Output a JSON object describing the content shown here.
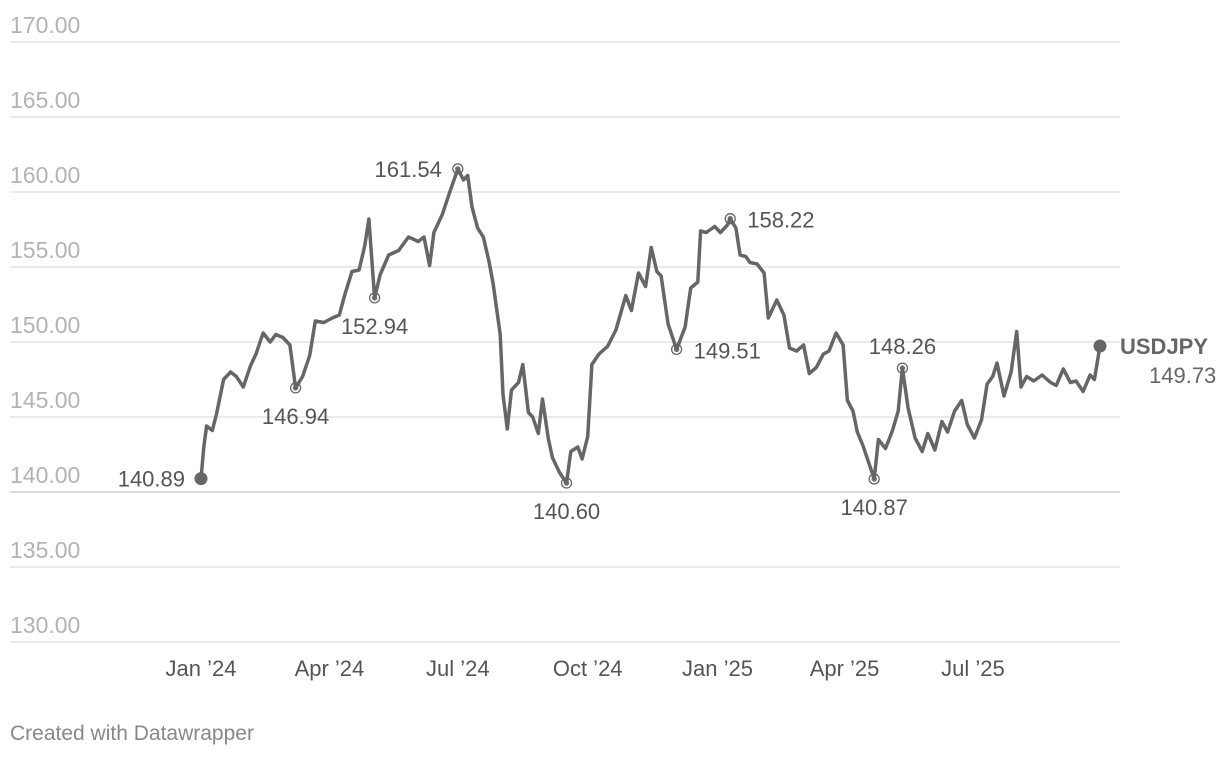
{
  "chart_data": {
    "type": "line",
    "ylim": [
      130,
      170
    ],
    "grid": true,
    "y_ticks": [
      "170.00",
      "165.00",
      "160.00",
      "155.00",
      "150.00",
      "145.00",
      "140.00",
      "135.00",
      "130.00"
    ],
    "y_tick_values": [
      170,
      165,
      160,
      155,
      150,
      145,
      140,
      135,
      130
    ],
    "x_ticks": [
      {
        "label": "Jan ’24",
        "date": "2024-01-01"
      },
      {
        "label": "Apr ’24",
        "date": "2024-04-01"
      },
      {
        "label": "Jul ’24",
        "date": "2024-07-01"
      },
      {
        "label": "Oct ’24",
        "date": "2024-10-01"
      },
      {
        "label": "Jan ’25",
        "date": "2025-01-01"
      },
      {
        "label": "Apr ’25",
        "date": "2025-04-01"
      },
      {
        "label": "Jul ’25",
        "date": "2025-07-01"
      }
    ],
    "series": [
      {
        "name": "USDJPY",
        "color": "#666666",
        "points": [
          [
            "2024-01-01",
            140.89
          ],
          [
            "2024-01-03",
            143.0
          ],
          [
            "2024-01-05",
            144.4
          ],
          [
            "2024-01-09",
            144.1
          ],
          [
            "2024-01-12",
            145.2
          ],
          [
            "2024-01-17",
            147.5
          ],
          [
            "2024-01-22",
            148.0
          ],
          [
            "2024-01-26",
            147.7
          ],
          [
            "2024-01-31",
            147.0
          ],
          [
            "2024-02-05",
            148.4
          ],
          [
            "2024-02-09",
            149.2
          ],
          [
            "2024-02-14",
            150.6
          ],
          [
            "2024-02-19",
            150.0
          ],
          [
            "2024-02-23",
            150.5
          ],
          [
            "2024-02-28",
            150.3
          ],
          [
            "2024-03-04",
            149.8
          ],
          [
            "2024-03-08",
            146.94
          ],
          [
            "2024-03-13",
            147.7
          ],
          [
            "2024-03-18",
            149.1
          ],
          [
            "2024-03-22",
            151.4
          ],
          [
            "2024-03-28",
            151.3
          ],
          [
            "2024-04-03",
            151.6
          ],
          [
            "2024-04-08",
            151.8
          ],
          [
            "2024-04-12",
            153.2
          ],
          [
            "2024-04-17",
            154.7
          ],
          [
            "2024-04-22",
            154.8
          ],
          [
            "2024-04-26",
            156.4
          ],
          [
            "2024-04-29",
            158.2
          ],
          [
            "2024-05-01",
            155.5
          ],
          [
            "2024-05-03",
            152.94
          ],
          [
            "2024-05-07",
            154.5
          ],
          [
            "2024-05-13",
            155.8
          ],
          [
            "2024-05-20",
            156.1
          ],
          [
            "2024-05-27",
            157.0
          ],
          [
            "2024-06-03",
            156.7
          ],
          [
            "2024-06-07",
            157.0
          ],
          [
            "2024-06-11",
            155.1
          ],
          [
            "2024-06-14",
            157.3
          ],
          [
            "2024-06-20",
            158.5
          ],
          [
            "2024-06-26",
            160.2
          ],
          [
            "2024-07-01",
            161.54
          ],
          [
            "2024-07-05",
            160.8
          ],
          [
            "2024-07-08",
            161.1
          ],
          [
            "2024-07-11",
            159.0
          ],
          [
            "2024-07-15",
            157.6
          ],
          [
            "2024-07-19",
            157.0
          ],
          [
            "2024-07-23",
            155.4
          ],
          [
            "2024-07-26",
            153.9
          ],
          [
            "2024-07-31",
            150.5
          ],
          [
            "2024-08-02",
            146.5
          ],
          [
            "2024-08-05",
            144.2
          ],
          [
            "2024-08-08",
            146.8
          ],
          [
            "2024-08-13",
            147.3
          ],
          [
            "2024-08-16",
            148.5
          ],
          [
            "2024-08-20",
            145.3
          ],
          [
            "2024-08-23",
            145.0
          ],
          [
            "2024-08-27",
            143.9
          ],
          [
            "2024-08-30",
            146.2
          ],
          [
            "2024-09-03",
            143.6
          ],
          [
            "2024-09-06",
            142.3
          ],
          [
            "2024-09-11",
            141.3
          ],
          [
            "2024-09-16",
            140.6
          ],
          [
            "2024-09-19",
            142.7
          ],
          [
            "2024-09-24",
            143.0
          ],
          [
            "2024-09-27",
            142.2
          ],
          [
            "2024-10-01",
            143.7
          ],
          [
            "2024-10-04",
            148.5
          ],
          [
            "2024-10-09",
            149.2
          ],
          [
            "2024-10-15",
            149.7
          ],
          [
            "2024-10-21",
            150.8
          ],
          [
            "2024-10-28",
            153.1
          ],
          [
            "2024-11-01",
            152.1
          ],
          [
            "2024-11-06",
            154.6
          ],
          [
            "2024-11-11",
            153.7
          ],
          [
            "2024-11-15",
            156.3
          ],
          [
            "2024-11-19",
            154.7
          ],
          [
            "2024-11-22",
            154.4
          ],
          [
            "2024-11-27",
            151.2
          ],
          [
            "2024-12-03",
            149.51
          ],
          [
            "2024-12-09",
            151.0
          ],
          [
            "2024-12-13",
            153.6
          ],
          [
            "2024-12-18",
            154.0
          ],
          [
            "2024-12-20",
            157.4
          ],
          [
            "2024-12-24",
            157.3
          ],
          [
            "2024-12-30",
            157.7
          ],
          [
            "2025-01-03",
            157.3
          ],
          [
            "2025-01-08",
            157.8
          ],
          [
            "2025-01-10",
            158.22
          ],
          [
            "2025-01-14",
            157.6
          ],
          [
            "2025-01-17",
            155.8
          ],
          [
            "2025-01-21",
            155.7
          ],
          [
            "2025-01-24",
            155.3
          ],
          [
            "2025-01-29",
            155.2
          ],
          [
            "2025-02-03",
            154.6
          ],
          [
            "2025-02-06",
            151.6
          ],
          [
            "2025-02-12",
            152.8
          ],
          [
            "2025-02-17",
            151.8
          ],
          [
            "2025-02-21",
            149.6
          ],
          [
            "2025-02-26",
            149.4
          ],
          [
            "2025-03-03",
            149.8
          ],
          [
            "2025-03-07",
            147.9
          ],
          [
            "2025-03-12",
            148.3
          ],
          [
            "2025-03-17",
            149.2
          ],
          [
            "2025-03-21",
            149.4
          ],
          [
            "2025-03-26",
            150.6
          ],
          [
            "2025-03-31",
            149.8
          ],
          [
            "2025-04-03",
            146.1
          ],
          [
            "2025-04-07",
            145.4
          ],
          [
            "2025-04-10",
            144.0
          ],
          [
            "2025-04-14",
            143.1
          ],
          [
            "2025-04-18",
            142.0
          ],
          [
            "2025-04-22",
            140.87
          ],
          [
            "2025-04-25",
            143.5
          ],
          [
            "2025-04-30",
            142.9
          ],
          [
            "2025-05-05",
            144.1
          ],
          [
            "2025-05-09",
            145.4
          ],
          [
            "2025-05-12",
            148.26
          ],
          [
            "2025-05-16",
            145.6
          ],
          [
            "2025-05-21",
            143.6
          ],
          [
            "2025-05-26",
            142.7
          ],
          [
            "2025-05-30",
            143.9
          ],
          [
            "2025-06-04",
            142.8
          ],
          [
            "2025-06-09",
            144.7
          ],
          [
            "2025-06-13",
            144.0
          ],
          [
            "2025-06-18",
            145.4
          ],
          [
            "2025-06-23",
            146.1
          ],
          [
            "2025-06-27",
            144.5
          ],
          [
            "2025-07-02",
            143.6
          ],
          [
            "2025-07-07",
            144.8
          ],
          [
            "2025-07-11",
            147.2
          ],
          [
            "2025-07-15",
            147.7
          ],
          [
            "2025-07-18",
            148.6
          ],
          [
            "2025-07-23",
            146.4
          ],
          [
            "2025-07-28",
            148.0
          ],
          [
            "2025-08-01",
            150.7
          ],
          [
            "2025-08-04",
            147.0
          ],
          [
            "2025-08-08",
            147.7
          ],
          [
            "2025-08-13",
            147.4
          ],
          [
            "2025-08-19",
            147.8
          ],
          [
            "2025-08-25",
            147.3
          ],
          [
            "2025-08-29",
            147.1
          ],
          [
            "2025-09-03",
            148.2
          ],
          [
            "2025-09-08",
            147.3
          ],
          [
            "2025-09-12",
            147.4
          ],
          [
            "2025-09-17",
            146.7
          ],
          [
            "2025-09-22",
            147.8
          ],
          [
            "2025-09-25",
            147.5
          ],
          [
            "2025-09-29",
            149.73
          ]
        ]
      }
    ],
    "annotations": [
      {
        "date": "2024-01-01",
        "value": 140.89,
        "label": "140.89",
        "side": "left",
        "marker": "filled"
      },
      {
        "date": "2024-03-08",
        "value": 146.94,
        "label": "146.94",
        "side": "below",
        "marker": "ring"
      },
      {
        "date": "2024-05-03",
        "value": 152.94,
        "label": "152.94",
        "side": "below",
        "marker": "ring"
      },
      {
        "date": "2024-07-01",
        "value": 161.54,
        "label": "161.54",
        "side": "left",
        "marker": "ring"
      },
      {
        "date": "2024-09-16",
        "value": 140.6,
        "label": "140.60",
        "side": "below",
        "marker": "ring"
      },
      {
        "date": "2024-12-03",
        "value": 149.51,
        "label": "149.51",
        "side": "right",
        "marker": "ring"
      },
      {
        "date": "2025-01-10",
        "value": 158.22,
        "label": "158.22",
        "side": "right",
        "marker": "ring"
      },
      {
        "date": "2025-04-22",
        "value": 140.87,
        "label": "140.87",
        "side": "below",
        "marker": "ring"
      },
      {
        "date": "2025-05-12",
        "value": 148.26,
        "label": "148.26",
        "side": "above",
        "marker": "ring"
      }
    ],
    "end_label": {
      "name": "USDJPY",
      "value": "149.73"
    }
  },
  "footer": "Created with Datawrapper"
}
